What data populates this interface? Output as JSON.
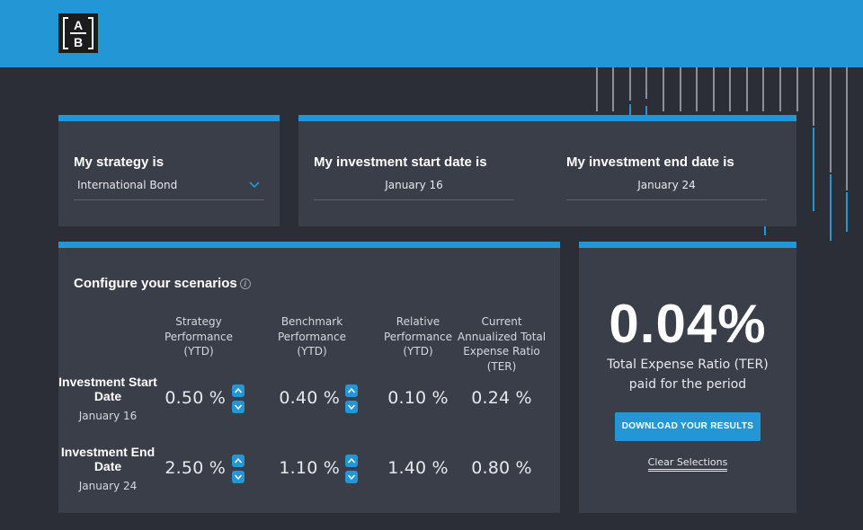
{
  "header": {
    "logo_top": "A",
    "logo_bottom": "B",
    "accent_color": "#2397d6"
  },
  "strategy": {
    "label": "My strategy is",
    "selected": "International Bond"
  },
  "dates": {
    "start_label": "My investment start date is",
    "start_value": "January 16",
    "end_label": "My investment end date is",
    "end_value": "January 24"
  },
  "config": {
    "title": "Configure your scenarios",
    "info_icon": "i",
    "columns": {
      "strategy": "Strategy Performance (YTD)",
      "benchmark": "Benchmark Performance (YTD)",
      "relative": "Relative Performance (YTD)",
      "ter": "Current Annualized Total Expense Ratio (TER)"
    },
    "rows": [
      {
        "title": "Investment Start Date",
        "date": "January 16",
        "strategy": "0.50 %",
        "benchmark": "0.40 %",
        "relative": "0.10 %",
        "ter": "0.24 %"
      },
      {
        "title": "Investment End Date",
        "date": "January 24",
        "strategy": "2.50 %",
        "benchmark": "1.10 %",
        "relative": "1.40 %",
        "ter": "0.80 %"
      }
    ]
  },
  "result": {
    "value": "0.04%",
    "caption": "Total Expense Ratio (TER) paid for the period",
    "download_label": "DOWNLOAD YOUR RESULTS",
    "clear_label": "Clear Selections"
  }
}
